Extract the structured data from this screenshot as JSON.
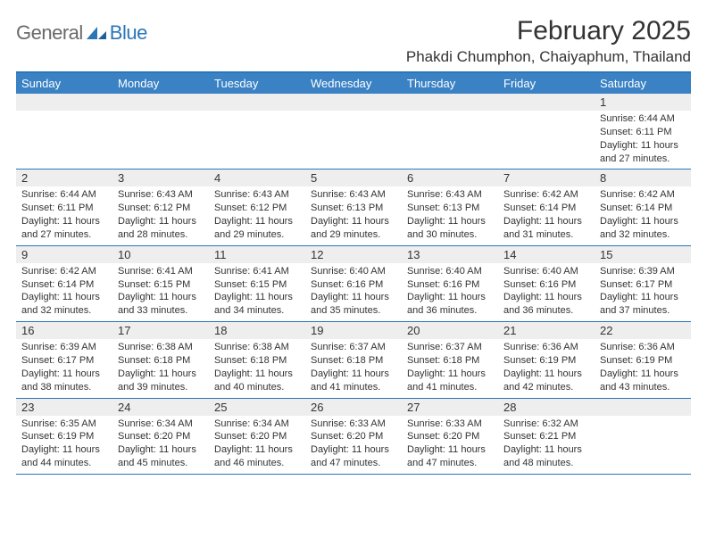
{
  "logo": {
    "general": "General",
    "blue": "Blue"
  },
  "header": {
    "month_title": "February 2025",
    "location": "Phakdi Chumphon, Chaiyaphum, Thailand"
  },
  "colors": {
    "header_bar": "#3a82c4",
    "border": "#2a76b8",
    "daynum_bg": "#eeeeee",
    "text": "#333333",
    "logo_gray": "#6a6a6a",
    "logo_blue": "#2a76b8"
  },
  "weekdays": [
    "Sunday",
    "Monday",
    "Tuesday",
    "Wednesday",
    "Thursday",
    "Friday",
    "Saturday"
  ],
  "weeks": [
    [
      {
        "n": "",
        "sr": "",
        "ss": "",
        "dl": ""
      },
      {
        "n": "",
        "sr": "",
        "ss": "",
        "dl": ""
      },
      {
        "n": "",
        "sr": "",
        "ss": "",
        "dl": ""
      },
      {
        "n": "",
        "sr": "",
        "ss": "",
        "dl": ""
      },
      {
        "n": "",
        "sr": "",
        "ss": "",
        "dl": ""
      },
      {
        "n": "",
        "sr": "",
        "ss": "",
        "dl": ""
      },
      {
        "n": "1",
        "sr": "Sunrise: 6:44 AM",
        "ss": "Sunset: 6:11 PM",
        "dl": "Daylight: 11 hours and 27 minutes."
      }
    ],
    [
      {
        "n": "2",
        "sr": "Sunrise: 6:44 AM",
        "ss": "Sunset: 6:11 PM",
        "dl": "Daylight: 11 hours and 27 minutes."
      },
      {
        "n": "3",
        "sr": "Sunrise: 6:43 AM",
        "ss": "Sunset: 6:12 PM",
        "dl": "Daylight: 11 hours and 28 minutes."
      },
      {
        "n": "4",
        "sr": "Sunrise: 6:43 AM",
        "ss": "Sunset: 6:12 PM",
        "dl": "Daylight: 11 hours and 29 minutes."
      },
      {
        "n": "5",
        "sr": "Sunrise: 6:43 AM",
        "ss": "Sunset: 6:13 PM",
        "dl": "Daylight: 11 hours and 29 minutes."
      },
      {
        "n": "6",
        "sr": "Sunrise: 6:43 AM",
        "ss": "Sunset: 6:13 PM",
        "dl": "Daylight: 11 hours and 30 minutes."
      },
      {
        "n": "7",
        "sr": "Sunrise: 6:42 AM",
        "ss": "Sunset: 6:14 PM",
        "dl": "Daylight: 11 hours and 31 minutes."
      },
      {
        "n": "8",
        "sr": "Sunrise: 6:42 AM",
        "ss": "Sunset: 6:14 PM",
        "dl": "Daylight: 11 hours and 32 minutes."
      }
    ],
    [
      {
        "n": "9",
        "sr": "Sunrise: 6:42 AM",
        "ss": "Sunset: 6:14 PM",
        "dl": "Daylight: 11 hours and 32 minutes."
      },
      {
        "n": "10",
        "sr": "Sunrise: 6:41 AM",
        "ss": "Sunset: 6:15 PM",
        "dl": "Daylight: 11 hours and 33 minutes."
      },
      {
        "n": "11",
        "sr": "Sunrise: 6:41 AM",
        "ss": "Sunset: 6:15 PM",
        "dl": "Daylight: 11 hours and 34 minutes."
      },
      {
        "n": "12",
        "sr": "Sunrise: 6:40 AM",
        "ss": "Sunset: 6:16 PM",
        "dl": "Daylight: 11 hours and 35 minutes."
      },
      {
        "n": "13",
        "sr": "Sunrise: 6:40 AM",
        "ss": "Sunset: 6:16 PM",
        "dl": "Daylight: 11 hours and 36 minutes."
      },
      {
        "n": "14",
        "sr": "Sunrise: 6:40 AM",
        "ss": "Sunset: 6:16 PM",
        "dl": "Daylight: 11 hours and 36 minutes."
      },
      {
        "n": "15",
        "sr": "Sunrise: 6:39 AM",
        "ss": "Sunset: 6:17 PM",
        "dl": "Daylight: 11 hours and 37 minutes."
      }
    ],
    [
      {
        "n": "16",
        "sr": "Sunrise: 6:39 AM",
        "ss": "Sunset: 6:17 PM",
        "dl": "Daylight: 11 hours and 38 minutes."
      },
      {
        "n": "17",
        "sr": "Sunrise: 6:38 AM",
        "ss": "Sunset: 6:18 PM",
        "dl": "Daylight: 11 hours and 39 minutes."
      },
      {
        "n": "18",
        "sr": "Sunrise: 6:38 AM",
        "ss": "Sunset: 6:18 PM",
        "dl": "Daylight: 11 hours and 40 minutes."
      },
      {
        "n": "19",
        "sr": "Sunrise: 6:37 AM",
        "ss": "Sunset: 6:18 PM",
        "dl": "Daylight: 11 hours and 41 minutes."
      },
      {
        "n": "20",
        "sr": "Sunrise: 6:37 AM",
        "ss": "Sunset: 6:18 PM",
        "dl": "Daylight: 11 hours and 41 minutes."
      },
      {
        "n": "21",
        "sr": "Sunrise: 6:36 AM",
        "ss": "Sunset: 6:19 PM",
        "dl": "Daylight: 11 hours and 42 minutes."
      },
      {
        "n": "22",
        "sr": "Sunrise: 6:36 AM",
        "ss": "Sunset: 6:19 PM",
        "dl": "Daylight: 11 hours and 43 minutes."
      }
    ],
    [
      {
        "n": "23",
        "sr": "Sunrise: 6:35 AM",
        "ss": "Sunset: 6:19 PM",
        "dl": "Daylight: 11 hours and 44 minutes."
      },
      {
        "n": "24",
        "sr": "Sunrise: 6:34 AM",
        "ss": "Sunset: 6:20 PM",
        "dl": "Daylight: 11 hours and 45 minutes."
      },
      {
        "n": "25",
        "sr": "Sunrise: 6:34 AM",
        "ss": "Sunset: 6:20 PM",
        "dl": "Daylight: 11 hours and 46 minutes."
      },
      {
        "n": "26",
        "sr": "Sunrise: 6:33 AM",
        "ss": "Sunset: 6:20 PM",
        "dl": "Daylight: 11 hours and 47 minutes."
      },
      {
        "n": "27",
        "sr": "Sunrise: 6:33 AM",
        "ss": "Sunset: 6:20 PM",
        "dl": "Daylight: 11 hours and 47 minutes."
      },
      {
        "n": "28",
        "sr": "Sunrise: 6:32 AM",
        "ss": "Sunset: 6:21 PM",
        "dl": "Daylight: 11 hours and 48 minutes."
      },
      {
        "n": "",
        "sr": "",
        "ss": "",
        "dl": ""
      }
    ]
  ]
}
